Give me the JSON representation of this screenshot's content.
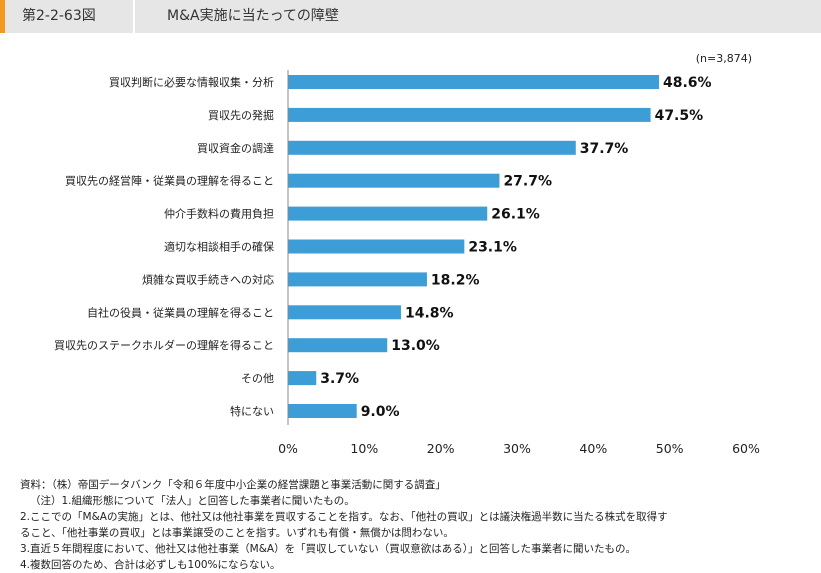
{
  "header": {
    "figure_number": "第2-2-63図",
    "title": "M&A実施に当たっての障壁"
  },
  "colors": {
    "bar": "#3d9dd6",
    "accent": "#f29a1f",
    "header_bg": "#e6e6e6"
  },
  "chart_data": {
    "type": "bar",
    "orientation": "horizontal",
    "sample_note": "(n=3,874)",
    "categories": [
      "買収判断に必要な情報収集・分析",
      "買収先の発掘",
      "買収資金の調達",
      "買収先の経営陣・従業員の理解を得ること",
      "仲介手数料の費用負担",
      "適切な相談相手の確保",
      "煩雑な買収手続きへの対応",
      "自社の役員・従業員の理解を得ること",
      "買収先のステークホルダーの理解を得ること",
      "その他",
      "特にない"
    ],
    "values": [
      48.6,
      47.5,
      37.7,
      27.7,
      26.1,
      23.1,
      18.2,
      14.8,
      13.0,
      3.7,
      9.0
    ],
    "value_labels": [
      "48.6%",
      "47.5%",
      "37.7%",
      "27.7%",
      "26.1%",
      "23.1%",
      "18.2%",
      "14.8%",
      "13.0%",
      "3.7%",
      "9.0%"
    ],
    "xlim": [
      0,
      60
    ],
    "x_ticks": [
      0,
      10,
      20,
      30,
      40,
      50,
      60
    ],
    "x_tick_labels": [
      "0%",
      "10%",
      "20%",
      "30%",
      "40%",
      "50%",
      "60%"
    ],
    "grid": false,
    "legend": "none"
  },
  "notes": [
    "資料：（株）帝国データバンク「令和６年度中小企業の経営課題と事業活動に関する調査」",
    "（注）1.組織形態について「法人」と回答した事業者に聞いたもの。",
    "2.ここでの「M&Aの実施」とは、他社又は他社事業を買収することを指す。なお、「他社の買収」とは議決権過半数に当たる株式を取得す",
    "ること、「他社事業の買収」とは事業譲受のことを指す。いずれも有償・無償かは問わない。",
    "3.直近５年間程度において、他社又は他社事業（M&A）を「買収していない（買収意欲はある）」と回答した事業者に聞いたもの。",
    "4.複数回答のため、合計は必ずしも100%にならない。"
  ]
}
